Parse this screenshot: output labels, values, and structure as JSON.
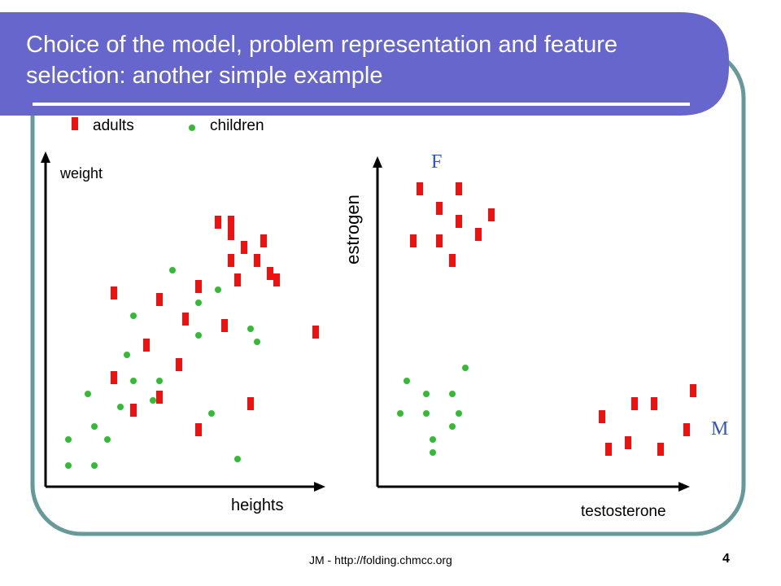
{
  "header": {
    "title_line1": "Choice of the model, problem representation and feature",
    "title_line2": "selection: another simple example"
  },
  "legend": {
    "adults_label": "adults",
    "children_label": "children"
  },
  "colors": {
    "header_bg": "#6666CC",
    "frame": "#669999",
    "adult_marker": "#EE1111",
    "child_marker": "#33BB33",
    "axis": "#000000",
    "sex_label": "#3355BB"
  },
  "chart_data": [
    {
      "type": "scatter",
      "xlabel": "heights",
      "ylabel": "weight",
      "series": [
        {
          "name": "adults",
          "points": [
            [
              268,
              273
            ],
            [
              284,
              273
            ],
            [
              284,
              287
            ],
            [
              300,
              304
            ],
            [
              324,
              296
            ],
            [
              284,
              320
            ],
            [
              316,
              320
            ],
            [
              332,
              336
            ],
            [
              340,
              344
            ],
            [
              292,
              344
            ],
            [
              244,
              352
            ],
            [
              140,
              360
            ],
            [
              196,
              368
            ],
            [
              228,
              392
            ],
            [
              276,
              400
            ],
            [
              388,
              408
            ],
            [
              180,
              424
            ],
            [
              220,
              448
            ],
            [
              140,
              464
            ],
            [
              196,
              488
            ],
            [
              164,
              504
            ],
            [
              308,
              496
            ],
            [
              244,
              528
            ]
          ]
        },
        {
          "name": "children",
          "points": [
            [
              212,
              332
            ],
            [
              268,
              356
            ],
            [
              244,
              372
            ],
            [
              164,
              388
            ],
            [
              244,
              412
            ],
            [
              308,
              404
            ],
            [
              316,
              420
            ],
            [
              156,
              436
            ],
            [
              164,
              468
            ],
            [
              196,
              468
            ],
            [
              108,
              484
            ],
            [
              148,
              500
            ],
            [
              188,
              492
            ],
            [
              260,
              508
            ],
            [
              116,
              524
            ],
            [
              84,
              540
            ],
            [
              132,
              540
            ],
            [
              84,
              572
            ],
            [
              116,
              572
            ],
            [
              292,
              564
            ]
          ]
        }
      ]
    },
    {
      "type": "scatter",
      "xlabel": "testosterone",
      "ylabel": "estrogen",
      "annotations": [
        "F",
        "M"
      ],
      "series": [
        {
          "name": "adults",
          "points": [
            [
              516,
              232
            ],
            [
              564,
              232
            ],
            [
              540,
              256
            ],
            [
              564,
              272
            ],
            [
              604,
              264
            ],
            [
              588,
              288
            ],
            [
              508,
              296
            ],
            [
              540,
              296
            ],
            [
              556,
              320
            ],
            [
              852,
              480
            ],
            [
              780,
              496
            ],
            [
              804,
              496
            ],
            [
              740,
              512
            ],
            [
              844,
              528
            ],
            [
              772,
              544
            ],
            [
              748,
              552
            ],
            [
              812,
              552
            ]
          ]
        },
        {
          "name": "children",
          "points": [
            [
              572,
              452
            ],
            [
              500,
              468
            ],
            [
              524,
              484
            ],
            [
              556,
              484
            ],
            [
              492,
              508
            ],
            [
              524,
              508
            ],
            [
              564,
              508
            ],
            [
              556,
              524
            ],
            [
              532,
              540
            ],
            [
              532,
              556
            ]
          ]
        }
      ]
    }
  ],
  "labels": {
    "weight": "weight",
    "heights": "heights",
    "estrogen": "estrogen",
    "testosterone": "testosterone",
    "female": "F",
    "male": "M"
  },
  "footer": {
    "credit": "JM - http://folding.chmcc.org",
    "page_number": "4"
  }
}
